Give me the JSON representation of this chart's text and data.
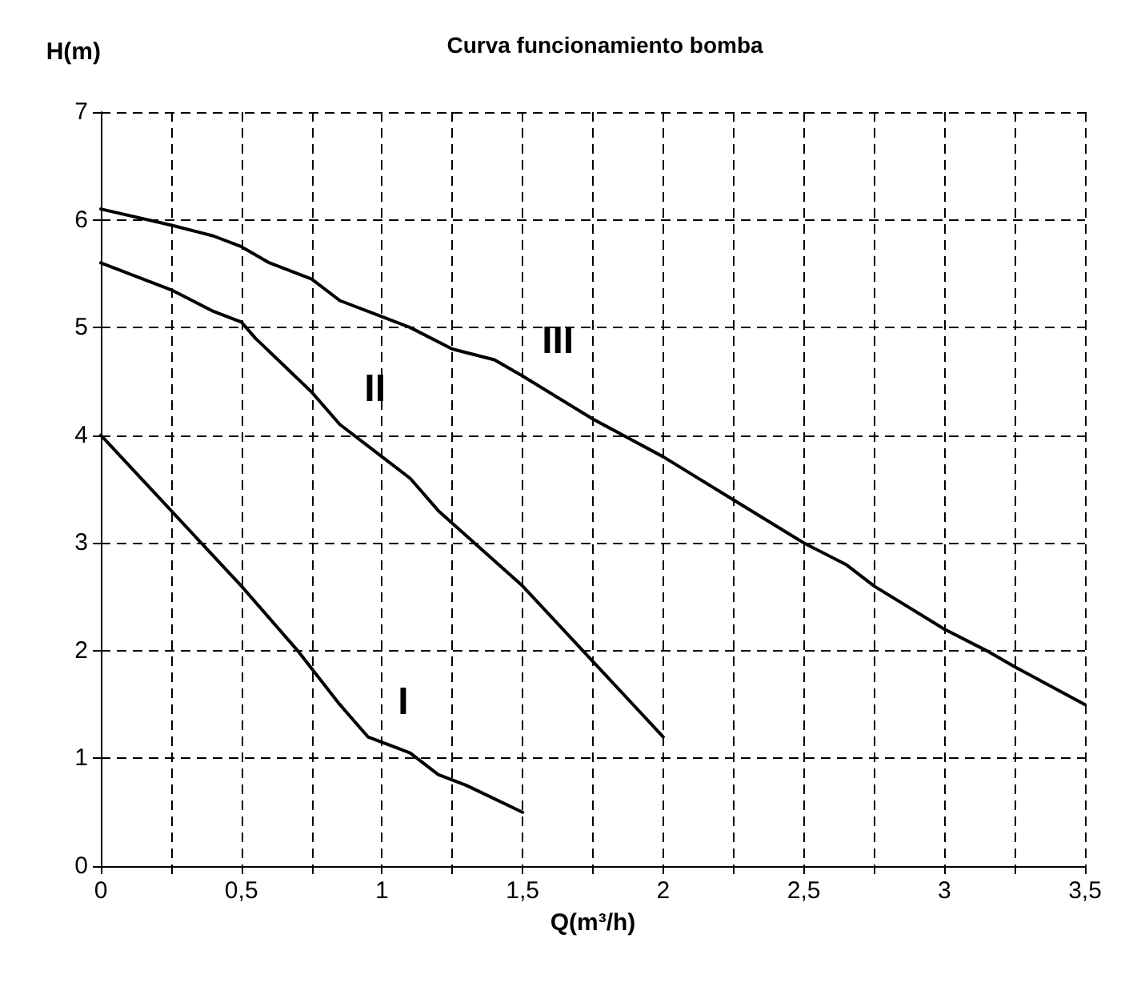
{
  "chart_data": {
    "type": "line",
    "title": "Curva funcionamiento bomba",
    "xlabel": "Q(m³/h)",
    "ylabel": "H(m)",
    "xlim": [
      0,
      3.5
    ],
    "ylim": [
      0,
      7
    ],
    "xticks": [
      0,
      {
        "value": 0.25,
        "label": null
      },
      {
        "value": 0.5,
        "label": "0,5"
      },
      {
        "value": 0.75,
        "label": null
      },
      1,
      {
        "value": 1.25,
        "label": null
      },
      {
        "value": 1.5,
        "label": "1,5"
      },
      {
        "value": 1.75,
        "label": null
      },
      2,
      {
        "value": 2.25,
        "label": null
      },
      {
        "value": 2.5,
        "label": "2,5"
      },
      {
        "value": 2.75,
        "label": null
      },
      3,
      {
        "value": 3.25,
        "label": null
      },
      {
        "value": 3.5,
        "label": "3,5"
      }
    ],
    "yticks": [
      0,
      1,
      2,
      3,
      4,
      5,
      6,
      7
    ],
    "grid": true,
    "marker": "none",
    "line_style": "solid",
    "series": [
      {
        "name": "I",
        "color": "#000000",
        "x": [
          0,
          0.25,
          0.5,
          0.7,
          0.85,
          0.95,
          1.05,
          1.1,
          1.2,
          1.3,
          1.5
        ],
        "values": [
          4,
          3.3,
          2.6,
          2.0,
          1.5,
          1.2,
          1.1,
          1.05,
          0.85,
          0.75,
          0.5
        ]
      },
      {
        "name": "II",
        "color": "#000000",
        "x": [
          0,
          0.25,
          0.4,
          0.5,
          0.55,
          0.65,
          0.75,
          0.85,
          1,
          1.1,
          1.2,
          1.5,
          1.75,
          2
        ],
        "values": [
          5.6,
          5.35,
          5.15,
          5.05,
          4.9,
          4.65,
          4.4,
          4.1,
          3.8,
          3.6,
          3.3,
          2.6,
          1.9,
          1.2
        ]
      },
      {
        "name": "III",
        "color": "#000000",
        "x": [
          0,
          0.25,
          0.4,
          0.5,
          0.6,
          0.75,
          0.85,
          1,
          1.1,
          1.25,
          1.4,
          1.5,
          1.75,
          2,
          2.25,
          2.5,
          2.65,
          2.75,
          3,
          3.15,
          3.25,
          3.5
        ],
        "values": [
          6.1,
          5.95,
          5.85,
          5.75,
          5.6,
          5.45,
          5.25,
          5.1,
          5.0,
          4.8,
          4.7,
          4.55,
          4.15,
          3.8,
          3.4,
          3.0,
          2.8,
          2.6,
          2.2,
          2.0,
          1.85,
          1.5
        ]
      }
    ]
  }
}
